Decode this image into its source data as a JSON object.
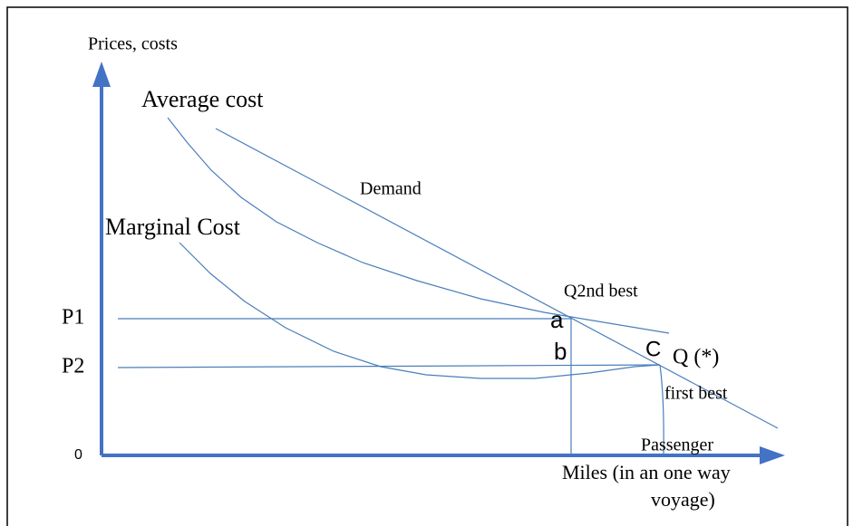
{
  "axes": {
    "y_label": "Prices, costs",
    "origin": "0",
    "x_label_lines": [
      "Passenger",
      "Miles (in an one way",
      "voyage)"
    ]
  },
  "curves": {
    "average_cost": "Average cost",
    "demand": "Demand",
    "marginal_cost": "Marginal Cost"
  },
  "price_levels": [
    "P1",
    "P2"
  ],
  "points": {
    "a": "a",
    "b": "b",
    "c": "C",
    "q_star": "Q (*)",
    "q_second_best": "Q2nd best",
    "first_best": "first best"
  }
}
